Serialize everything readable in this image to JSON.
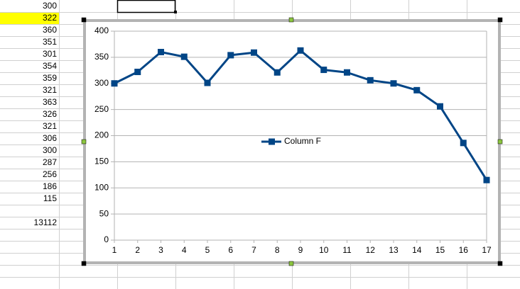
{
  "column_a": [
    300,
    322,
    360,
    351,
    301,
    354,
    359,
    321,
    363,
    326,
    321,
    306,
    300,
    287,
    256,
    186,
    115
  ],
  "total": 13112,
  "chart_data": {
    "type": "line",
    "categories": [
      1,
      2,
      3,
      4,
      5,
      6,
      7,
      8,
      9,
      10,
      11,
      12,
      13,
      14,
      15,
      16,
      17
    ],
    "series": [
      {
        "name": "Column F",
        "color": "#004586",
        "values": [
          300,
          322,
          360,
          351,
          301,
          354,
          359,
          321,
          363,
          326,
          321,
          306,
          300,
          287,
          256,
          186,
          115
        ]
      }
    ],
    "ylim": [
      0,
      400
    ],
    "yticks": [
      0,
      50,
      100,
      150,
      200,
      250,
      300,
      350,
      400
    ],
    "grid": true
  }
}
